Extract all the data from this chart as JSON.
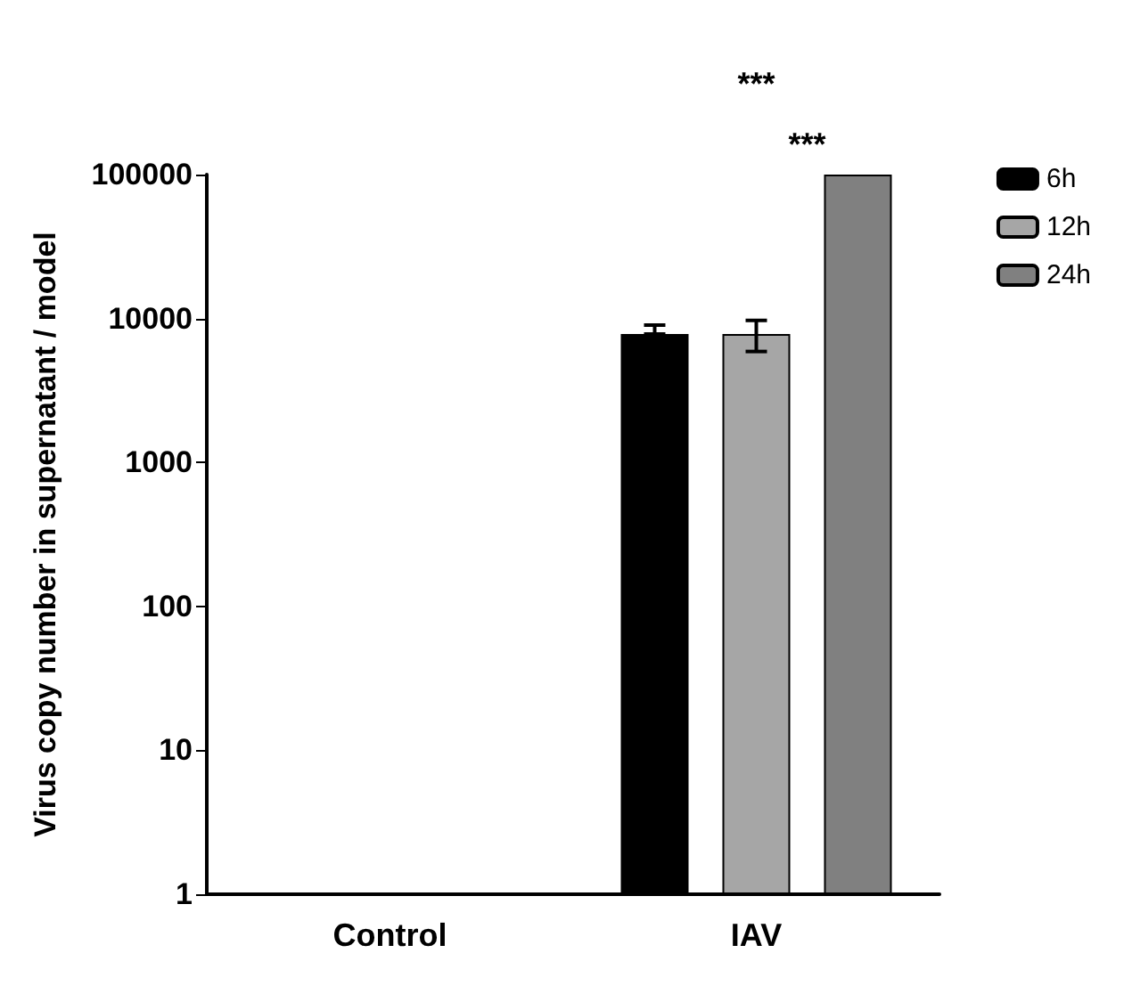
{
  "chart_data": {
    "type": "bar",
    "ylabel": "Virus copy number in supernatant / model",
    "categories": [
      "Control",
      "IAV"
    ],
    "series": [
      {
        "name": "6h",
        "color": "#000000",
        "values": [
          null,
          7800
        ],
        "errors": [
          null,
          [
            7800,
            9000
          ]
        ]
      },
      {
        "name": "12h",
        "color": "#a6a6a6",
        "values": [
          null,
          7800
        ],
        "errors": [
          null,
          [
            5900,
            9700
          ]
        ]
      },
      {
        "name": "24h",
        "color": "#808080",
        "values": [
          null,
          100000
        ]
      }
    ],
    "log": true,
    "ylim": [
      1,
      100000
    ],
    "yticks": [
      1,
      10,
      100,
      1000,
      10000,
      100000
    ],
    "grid": false,
    "legend": "right",
    "annotations": [
      "***",
      "***"
    ]
  }
}
